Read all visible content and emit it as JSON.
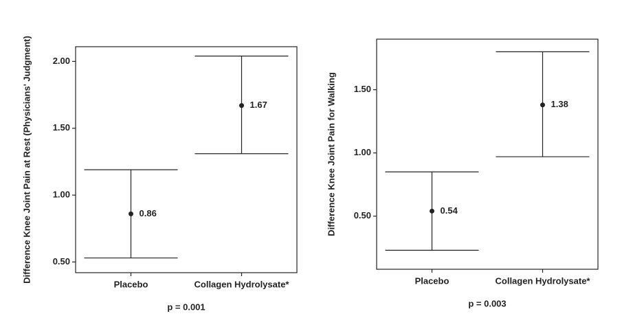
{
  "chart_data": [
    {
      "type": "errorbar",
      "y_label": "Difference Knee Joint Pain at Rest (Physicians' Judgment)",
      "annotation": "p = 0.001",
      "categories": [
        "Placebo",
        "Collagen Hydrolysate*"
      ],
      "values": [
        0.86,
        1.67
      ],
      "lower": [
        0.53,
        1.31
      ],
      "upper": [
        1.19,
        2.04
      ],
      "color": "#222222",
      "ylim": [
        0.42,
        2.11
      ],
      "yticks": [
        {
          "value": 0.5,
          "label": "0.50"
        },
        {
          "value": 1.0,
          "label": "1.00"
        },
        {
          "value": 1.5,
          "label": "1.50"
        },
        {
          "value": 2.0,
          "label": "2.00"
        }
      ]
    },
    {
      "type": "errorbar",
      "y_label": "Difference Knee Joint Pain for Walking",
      "annotation": "p = 0.003",
      "categories": [
        "Placebo",
        "Collagen Hydrolysate*"
      ],
      "values": [
        0.54,
        1.38
      ],
      "lower": [
        0.23,
        0.97
      ],
      "upper": [
        0.85,
        1.8
      ],
      "color": "#222222",
      "ylim": [
        0.08,
        1.9
      ],
      "yticks": [
        {
          "value": 0.5,
          "label": "0.50"
        },
        {
          "value": 1.0,
          "label": "1.00"
        },
        {
          "value": 1.5,
          "label": "1.50"
        }
      ]
    }
  ]
}
